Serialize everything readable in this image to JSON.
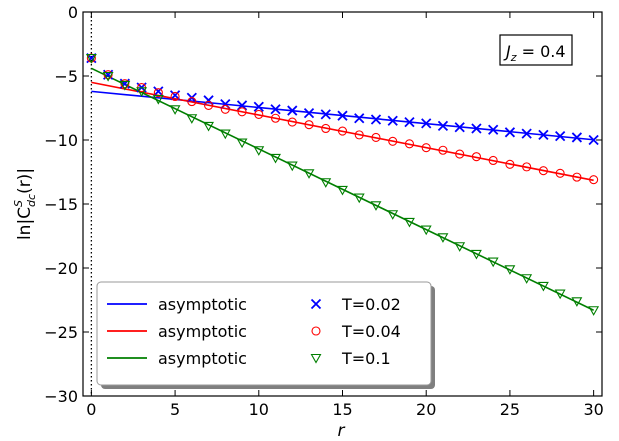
{
  "chart_data": {
    "type": "line",
    "xlabel": "r",
    "ylabel": "ln|C",
    "ylabel_sup": "S",
    "ylabel_sub": "dc",
    "ylabel_tail": "(r)|",
    "annotation": {
      "prefix": "J",
      "sub": "z",
      "value": " = 0.4"
    },
    "xlim": [
      -0.5,
      30.5
    ],
    "ylim": [
      -30,
      0
    ],
    "xticks": [
      0,
      5,
      10,
      15,
      20,
      25,
      30
    ],
    "yticks": [
      0,
      -5,
      -10,
      -15,
      -20,
      -25,
      -30
    ],
    "vline_x": 0,
    "grid": false,
    "legend_position": "lower-left",
    "series": [
      {
        "name": "asymptotic",
        "kind": "line",
        "color": "#0000ff",
        "intercept": -6.2,
        "slope": -0.126
      },
      {
        "name": "asymptotic",
        "kind": "line",
        "color": "#ff0000",
        "intercept": -5.5,
        "slope": -0.255
      },
      {
        "name": "asymptotic",
        "kind": "line",
        "color": "#007f00",
        "intercept": -4.4,
        "slope": -0.63
      },
      {
        "name": "T=0.02",
        "kind": "marker",
        "marker": "x",
        "color": "#0000ff",
        "x": [
          0,
          1,
          2,
          3,
          4,
          5,
          6,
          7,
          8,
          9,
          10,
          11,
          12,
          13,
          14,
          15,
          16,
          17,
          18,
          19,
          20,
          21,
          22,
          23,
          24,
          25,
          26,
          27,
          28,
          29,
          30
        ],
        "y": [
          -3.6,
          -4.9,
          -5.6,
          -5.9,
          -6.2,
          -6.5,
          -6.7,
          -6.9,
          -7.2,
          -7.3,
          -7.4,
          -7.6,
          -7.7,
          -7.9,
          -8.0,
          -8.1,
          -8.3,
          -8.4,
          -8.5,
          -8.6,
          -8.7,
          -8.9,
          -9.0,
          -9.1,
          -9.2,
          -9.4,
          -9.5,
          -9.6,
          -9.7,
          -9.8,
          -10.0
        ]
      },
      {
        "name": "T=0.04",
        "kind": "marker",
        "marker": "o",
        "color": "#ff0000",
        "x": [
          0,
          1,
          2,
          3,
          4,
          5,
          6,
          7,
          8,
          9,
          10,
          11,
          12,
          13,
          14,
          15,
          16,
          17,
          18,
          19,
          20,
          21,
          22,
          23,
          24,
          25,
          26,
          27,
          28,
          29,
          30
        ],
        "y": [
          -3.6,
          -4.9,
          -5.6,
          -5.9,
          -6.3,
          -6.6,
          -7.0,
          -7.3,
          -7.6,
          -7.8,
          -8.0,
          -8.3,
          -8.6,
          -8.8,
          -9.1,
          -9.3,
          -9.6,
          -9.8,
          -10.1,
          -10.3,
          -10.6,
          -10.8,
          -11.1,
          -11.3,
          -11.6,
          -11.9,
          -12.1,
          -12.4,
          -12.6,
          -12.9,
          -13.1
        ]
      },
      {
        "name": "T=0.1",
        "kind": "marker",
        "marker": "v",
        "color": "#007f00",
        "x": [
          0,
          1,
          2,
          3,
          4,
          5,
          6,
          7,
          8,
          9,
          10,
          11,
          12,
          13,
          14,
          15,
          16,
          17,
          18,
          19,
          20,
          21,
          22,
          23,
          24,
          25,
          26,
          27,
          28,
          29,
          30
        ],
        "y": [
          -3.6,
          -5.0,
          -5.7,
          -6.2,
          -6.8,
          -7.6,
          -8.3,
          -8.9,
          -9.5,
          -10.2,
          -10.8,
          -11.4,
          -12.0,
          -12.6,
          -13.3,
          -13.9,
          -14.5,
          -15.1,
          -15.8,
          -16.4,
          -17.0,
          -17.6,
          -18.3,
          -18.9,
          -19.5,
          -20.1,
          -20.8,
          -21.4,
          -22.0,
          -22.6,
          -23.3
        ]
      }
    ]
  }
}
